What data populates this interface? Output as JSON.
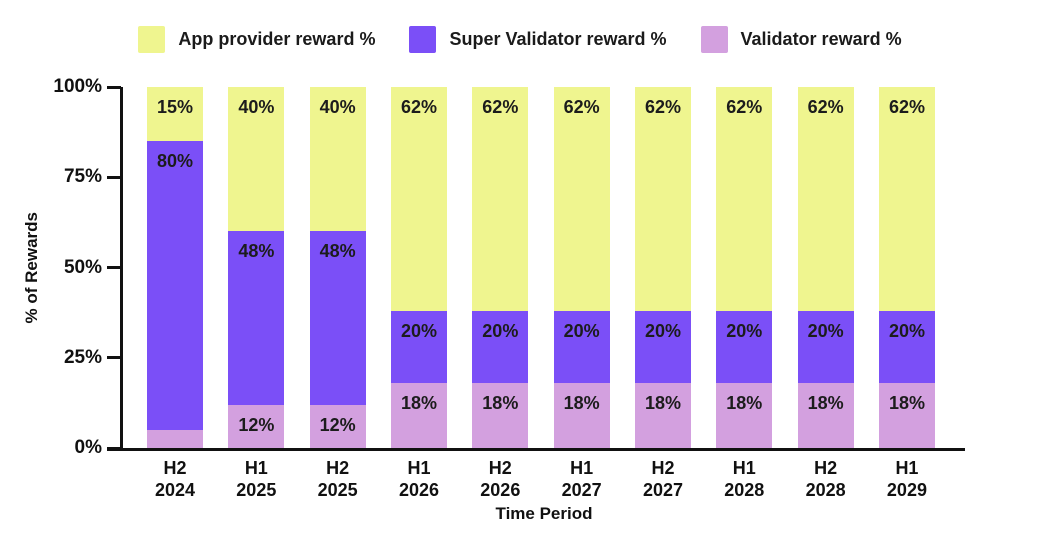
{
  "legend": {
    "items": [
      {
        "label": "App provider reward %",
        "color": "#EFF58F"
      },
      {
        "label": "Super Validator reward %",
        "color": "#7B4FF7"
      },
      {
        "label": "Validator reward %",
        "color": "#D3A0DF"
      }
    ]
  },
  "y_axis": {
    "title": "% of Rewards",
    "ticks": [
      "100%",
      "75%",
      "50%",
      "25%",
      "0%"
    ]
  },
  "x_axis": {
    "title": "Time Period"
  },
  "chart_data": {
    "type": "bar",
    "stacked": true,
    "title": "",
    "xlabel": "Time Period",
    "ylabel": "% of Rewards",
    "ylim": [
      0,
      100
    ],
    "grid": false,
    "legend_position": "top",
    "categories": [
      {
        "half": "H2",
        "year": "2024"
      },
      {
        "half": "H1",
        "year": "2025"
      },
      {
        "half": "H2",
        "year": "2025"
      },
      {
        "half": "H1",
        "year": "2026"
      },
      {
        "half": "H2",
        "year": "2026"
      },
      {
        "half": "H1",
        "year": "2027"
      },
      {
        "half": "H2",
        "year": "2027"
      },
      {
        "half": "H1",
        "year": "2028"
      },
      {
        "half": "H2",
        "year": "2028"
      },
      {
        "half": "H1",
        "year": "2029"
      }
    ],
    "series": [
      {
        "name": "Validator reward %",
        "color": "#D3A0DF",
        "values": [
          5,
          12,
          12,
          18,
          18,
          18,
          18,
          18,
          18,
          18
        ]
      },
      {
        "name": "Super Validator reward %",
        "color": "#7B4FF7",
        "values": [
          80,
          48,
          48,
          20,
          20,
          20,
          20,
          20,
          20,
          20
        ]
      },
      {
        "name": "App provider reward %",
        "color": "#EFF58F",
        "values": [
          15,
          40,
          40,
          62,
          62,
          62,
          62,
          62,
          62,
          62
        ]
      }
    ],
    "data_label_color": "#1C1C1C",
    "small_segment_label_color": "#D5A6E3",
    "axis_color": "#111111"
  }
}
